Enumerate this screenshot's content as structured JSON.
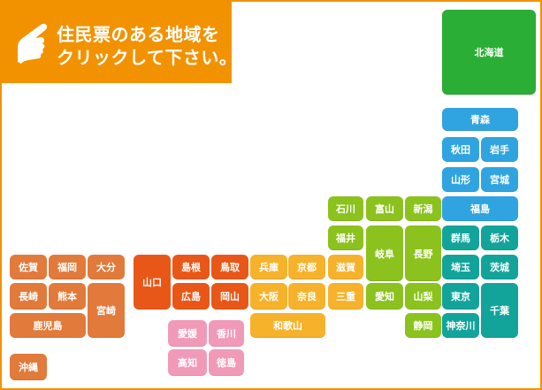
{
  "instruction": {
    "line1": "住民票のある地域を",
    "line2": "クリックして下さい。",
    "icon": "pointing-hand-icon"
  },
  "colors": {
    "accent": "#f29200",
    "hokkaido": "#2bae35",
    "tohoku": "#30a4e0",
    "kanto": "#12a49a",
    "chubu": "#8cc21e",
    "kinki": "#f6b22a",
    "chugoku": "#e95718",
    "shikoku": "#f19ab8",
    "kyushu": "#e17a3a"
  },
  "prefectures": [
    {
      "id": "hokkaido",
      "label": "北海道",
      "region": "hokkaido"
    },
    {
      "id": "aomori",
      "label": "青森",
      "region": "tohoku"
    },
    {
      "id": "akita",
      "label": "秋田",
      "region": "tohoku"
    },
    {
      "id": "iwate",
      "label": "岩手",
      "region": "tohoku"
    },
    {
      "id": "yamagata",
      "label": "山形",
      "region": "tohoku"
    },
    {
      "id": "miyagi",
      "label": "宮城",
      "region": "tohoku"
    },
    {
      "id": "fukushima",
      "label": "福島",
      "region": "tohoku"
    },
    {
      "id": "ishikawa",
      "label": "石川",
      "region": "chubu"
    },
    {
      "id": "toyama",
      "label": "富山",
      "region": "chubu"
    },
    {
      "id": "niigata",
      "label": "新潟",
      "region": "chubu"
    },
    {
      "id": "fukui",
      "label": "福井",
      "region": "chubu"
    },
    {
      "id": "gifu",
      "label": "岐阜",
      "region": "chubu"
    },
    {
      "id": "nagano",
      "label": "長野",
      "region": "chubu"
    },
    {
      "id": "aichi",
      "label": "愛知",
      "region": "chubu"
    },
    {
      "id": "yamanashi",
      "label": "山梨",
      "region": "chubu"
    },
    {
      "id": "shizuoka",
      "label": "静岡",
      "region": "chubu"
    },
    {
      "id": "gunma",
      "label": "群馬",
      "region": "kanto"
    },
    {
      "id": "tochigi",
      "label": "栃木",
      "region": "kanto"
    },
    {
      "id": "saitama",
      "label": "埼玉",
      "region": "kanto"
    },
    {
      "id": "ibaraki",
      "label": "茨城",
      "region": "kanto"
    },
    {
      "id": "tokyo",
      "label": "東京",
      "region": "kanto"
    },
    {
      "id": "chiba",
      "label": "千葉",
      "region": "kanto"
    },
    {
      "id": "kanagawa",
      "label": "神奈川",
      "region": "kanto"
    },
    {
      "id": "hyogo",
      "label": "兵庫",
      "region": "kinki"
    },
    {
      "id": "kyoto",
      "label": "京都",
      "region": "kinki"
    },
    {
      "id": "shiga",
      "label": "滋賀",
      "region": "kinki"
    },
    {
      "id": "osaka",
      "label": "大阪",
      "region": "kinki"
    },
    {
      "id": "nara",
      "label": "奈良",
      "region": "kinki"
    },
    {
      "id": "mie",
      "label": "三重",
      "region": "kinki"
    },
    {
      "id": "wakayama",
      "label": "和歌山",
      "region": "kinki"
    },
    {
      "id": "yamaguchi",
      "label": "山口",
      "region": "chugoku"
    },
    {
      "id": "shimane",
      "label": "島根",
      "region": "chugoku"
    },
    {
      "id": "tottori",
      "label": "鳥取",
      "region": "chugoku"
    },
    {
      "id": "hiroshima",
      "label": "広島",
      "region": "chugoku"
    },
    {
      "id": "okayama",
      "label": "岡山",
      "region": "chugoku"
    },
    {
      "id": "ehime",
      "label": "愛媛",
      "region": "shikoku"
    },
    {
      "id": "kagawa",
      "label": "香川",
      "region": "shikoku"
    },
    {
      "id": "kochi",
      "label": "高知",
      "region": "shikoku"
    },
    {
      "id": "tokushima",
      "label": "徳島",
      "region": "shikoku"
    },
    {
      "id": "saga",
      "label": "佐賀",
      "region": "kyushu"
    },
    {
      "id": "fukuoka",
      "label": "福岡",
      "region": "kyushu"
    },
    {
      "id": "oita",
      "label": "大分",
      "region": "kyushu"
    },
    {
      "id": "nagasaki",
      "label": "長崎",
      "region": "kyushu"
    },
    {
      "id": "kumamoto",
      "label": "熊本",
      "region": "kyushu"
    },
    {
      "id": "miyazaki",
      "label": "宮崎",
      "region": "kyushu"
    },
    {
      "id": "kagoshima",
      "label": "鹿児島",
      "region": "kyushu"
    },
    {
      "id": "okinawa",
      "label": "沖縄",
      "region": "kyushu"
    }
  ]
}
